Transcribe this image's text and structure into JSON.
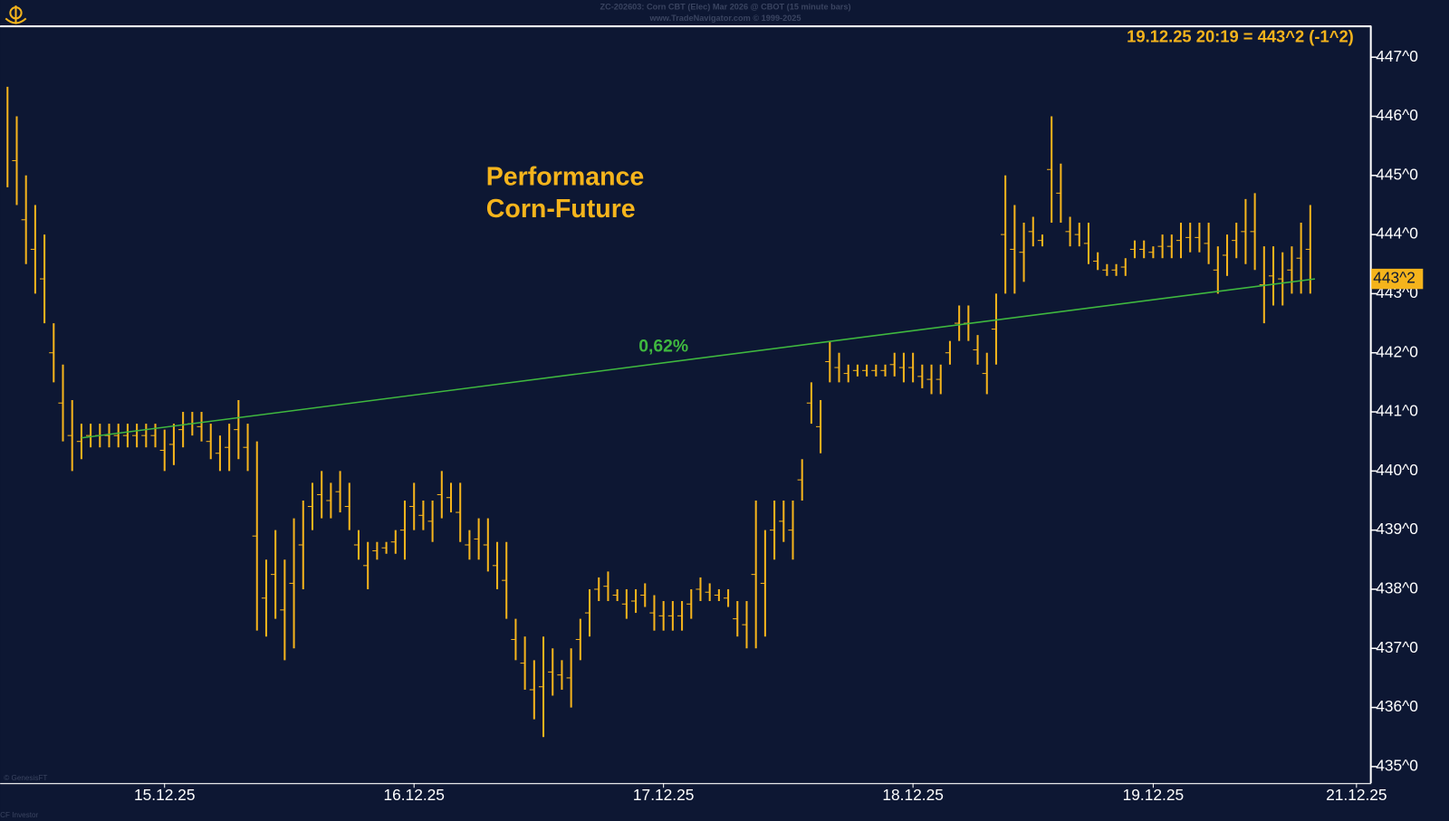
{
  "chart_data": {
    "type": "ohlc",
    "title": "ZC-202603: Corn CBT (Elec) Mar 2026 @ CBOT (15 minute bars)",
    "subtitle": "www.TradeNavigator.com © 1999-2025",
    "header": "19.12.25 20:19 = 443^2 (-1^2)",
    "annotation": [
      "Performance",
      "Corn-Future"
    ],
    "copyright": "© GenesisFT",
    "footer": "CF Investor",
    "color": "#f5b41c",
    "categories": [
      null,
      null,
      null,
      null,
      null,
      null,
      null,
      null,
      null,
      null,
      null,
      null,
      null,
      null,
      null,
      null,
      null,
      "15.12.25",
      null,
      null,
      null,
      null,
      null,
      null,
      null,
      null,
      null,
      null,
      null,
      null,
      null,
      null,
      null,
      null,
      null,
      null,
      null,
      null,
      null,
      null,
      null,
      null,
      null,
      null,
      "16.12.25",
      null,
      null,
      null,
      null,
      null,
      null,
      null,
      null,
      null,
      null,
      null,
      null,
      null,
      null,
      null,
      null,
      null,
      null,
      null,
      null,
      null,
      null,
      null,
      null,
      null,
      null,
      "17.12.25",
      null,
      null,
      null,
      null,
      null,
      null,
      null,
      null,
      null,
      null,
      null,
      null,
      null,
      null,
      null,
      null,
      null,
      null,
      null,
      null,
      null,
      null,
      null,
      null,
      null,
      null,
      "18.12.25",
      null,
      null,
      null,
      null,
      null,
      null,
      null,
      null,
      null,
      null,
      null,
      null,
      null,
      null,
      null,
      null,
      null,
      null,
      null,
      null,
      null,
      null,
      null,
      null,
      null,
      "19.12.25",
      null,
      null,
      null,
      null,
      null,
      null,
      null,
      null,
      null,
      null,
      null,
      null,
      null,
      null,
      null,
      null,
      null,
      null,
      null,
      null,
      null,
      "21.12.25"
    ],
    "high": [
      446.5,
      446,
      445,
      444.5,
      444,
      442.5,
      441.8,
      441.2,
      440.8,
      440.8,
      440.8,
      440.8,
      440.8,
      440.8,
      440.8,
      440.8,
      440.8,
      440.7,
      440.8,
      441,
      441,
      441,
      440.8,
      440.6,
      440.8,
      441.2,
      440.8,
      440.5,
      438.5,
      439,
      438.5,
      439.2,
      439.5,
      439.8,
      440,
      439.8,
      440,
      439.8,
      439,
      438.8,
      438.8,
      438.8,
      439,
      439.5,
      439.8,
      439.5,
      439.5,
      440,
      439.8,
      439.8,
      439,
      439.2,
      439.2,
      438.8,
      438.8,
      437.5,
      437.2,
      436.8,
      437.2,
      437,
      436.8,
      437,
      437.5,
      438,
      438.2,
      438.3,
      438,
      438,
      438,
      438.1,
      437.9,
      437.8,
      437.8,
      437.8,
      438,
      438.2,
      438.1,
      438,
      438,
      437.8,
      437.8,
      439.5,
      439,
      439.5,
      439.5,
      439.5,
      440.2,
      441.5,
      441.2,
      442.2,
      442,
      441.8,
      441.8,
      441.8,
      441.8,
      441.8,
      442,
      442,
      442,
      441.8,
      441.8,
      441.8,
      442.2,
      442.8,
      442.8,
      442.3,
      442,
      443,
      445,
      444.5,
      444.2,
      444.3,
      444,
      446,
      445.2,
      444.3,
      444.2,
      444.2,
      443.7,
      443.5,
      443.5,
      443.6,
      443.9,
      443.9,
      443.8,
      444,
      444,
      444.2,
      444.2,
      444.2,
      444.2,
      443.8,
      444,
      444.2,
      444.6,
      444.7,
      443.8,
      443.8,
      443.7,
      443.8,
      444.2,
      444.5,
      null,
      null,
      null,
      null,
      null
    ],
    "low": [
      444.8,
      444.5,
      443.5,
      443,
      442.5,
      441.5,
      440.5,
      440,
      440.2,
      440.4,
      440.4,
      440.4,
      440.4,
      440.4,
      440.4,
      440.4,
      440.4,
      440,
      440.1,
      440.4,
      440.6,
      440.5,
      440.2,
      440,
      440,
      440.2,
      440,
      437.3,
      437.2,
      437.5,
      436.8,
      437,
      438,
      439,
      439.2,
      439.2,
      439.3,
      439,
      438.5,
      438,
      438.5,
      438.6,
      438.6,
      438.5,
      439,
      439,
      438.8,
      439.2,
      439.3,
      438.8,
      438.5,
      438.5,
      438.3,
      438,
      437.5,
      436.8,
      436.3,
      435.8,
      435.5,
      436.2,
      436.3,
      436,
      436.8,
      437.2,
      437.8,
      437.8,
      437.8,
      437.5,
      437.6,
      437.7,
      437.3,
      437.3,
      437.3,
      437.3,
      437.5,
      437.8,
      437.8,
      437.8,
      437.7,
      437.2,
      437,
      437,
      437.2,
      438.5,
      438.8,
      438.5,
      439.5,
      440.8,
      440.3,
      441.5,
      441.5,
      441.5,
      441.6,
      441.6,
      441.6,
      441.6,
      441.6,
      441.5,
      441.5,
      441.4,
      441.3,
      441.3,
      441.8,
      442.2,
      442.2,
      441.8,
      441.3,
      441.8,
      443,
      443,
      443.2,
      443.8,
      443.8,
      444.2,
      444.2,
      443.8,
      443.8,
      443.5,
      443.4,
      443.3,
      443.3,
      443.3,
      443.6,
      443.6,
      443.6,
      443.6,
      443.6,
      443.6,
      443.7,
      443.7,
      443.5,
      443,
      443.3,
      443.6,
      443.5,
      443.4,
      442.5,
      442.8,
      442.8,
      443,
      443,
      443,
      null,
      null,
      null,
      null,
      null
    ],
    "trendline": {
      "label": "0,62%",
      "start": 440.56,
      "end": 443.25,
      "color": "#3fb83f"
    },
    "last_price": {
      "value": 443.25,
      "label": "443^2"
    },
    "ylim": [
      434.72,
      447.53
    ],
    "yticks": [
      {
        "value": 435,
        "label": "435^0"
      },
      {
        "value": 436,
        "label": "436^0"
      },
      {
        "value": 437,
        "label": "437^0"
      },
      {
        "value": 438,
        "label": "438^0"
      },
      {
        "value": 439,
        "label": "439^0"
      },
      {
        "value": 440,
        "label": "440^0"
      },
      {
        "value": 441,
        "label": "441^0"
      },
      {
        "value": 442,
        "label": "442^0"
      },
      {
        "value": 443,
        "label": "443^0"
      },
      {
        "value": 444,
        "label": "444^0"
      },
      {
        "value": 445,
        "label": "445^0"
      },
      {
        "value": 446,
        "label": "446^0"
      },
      {
        "value": 447,
        "label": "447^0"
      }
    ]
  }
}
